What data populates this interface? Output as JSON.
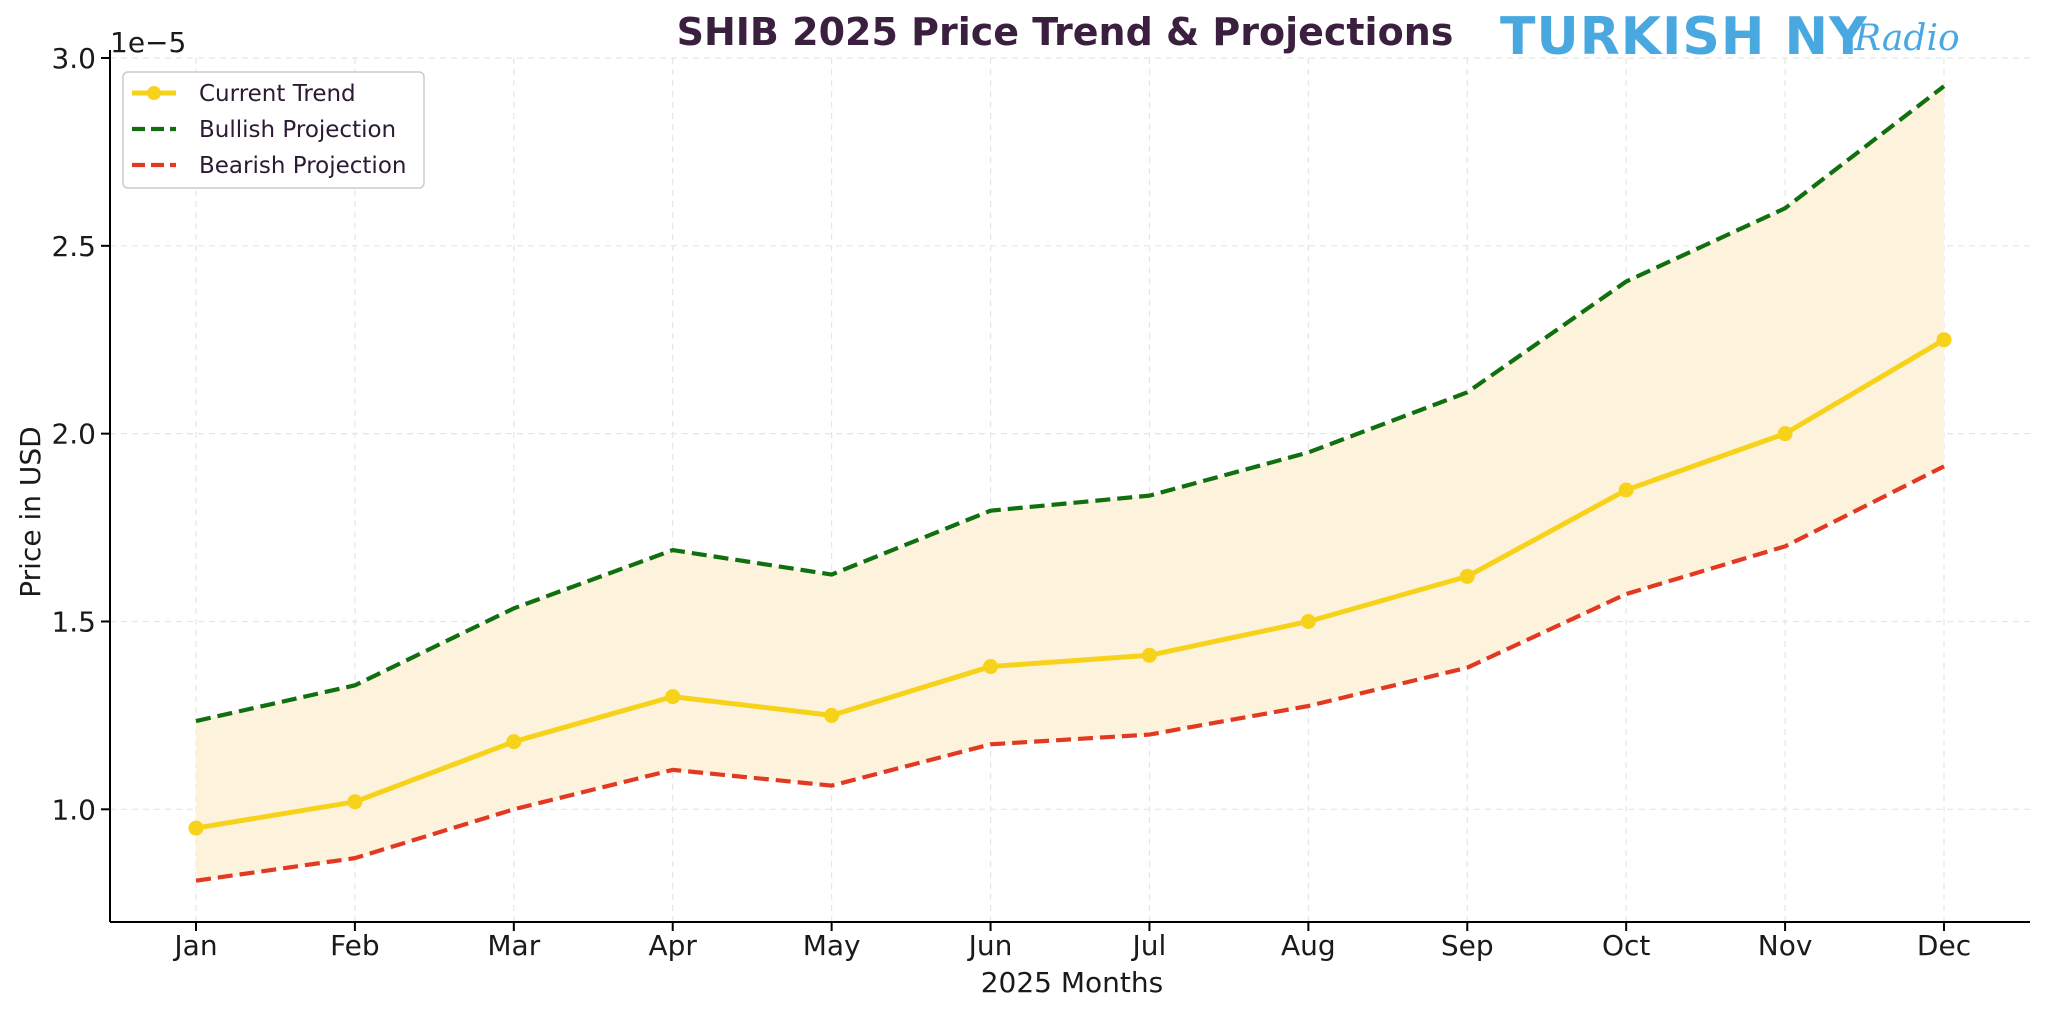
{
  "chart_data": {
    "type": "line",
    "title": "SHIB 2025 Price Trend & Projections",
    "xlabel": "2025 Months",
    "ylabel": "Price in USD",
    "y_offset_label": "1e−5",
    "categories": [
      "Jan",
      "Feb",
      "Mar",
      "Apr",
      "May",
      "Jun",
      "Jul",
      "Aug",
      "Sep",
      "Oct",
      "Nov",
      "Dec"
    ],
    "ylim": [
      0.7,
      3.0
    ],
    "yticks": [
      1.0,
      1.5,
      2.0,
      2.5,
      3.0
    ],
    "ytick_labels": [
      "1.0",
      "1.5",
      "2.0",
      "2.5",
      "3.0"
    ],
    "grid": true,
    "legend_position": "top-left",
    "series": [
      {
        "name": "Current Trend",
        "style": "solid-markers",
        "color": "#f7d21a",
        "values": [
          0.95,
          1.02,
          1.18,
          1.3,
          1.25,
          1.38,
          1.41,
          1.5,
          1.62,
          1.85,
          2.0,
          2.25
        ]
      },
      {
        "name": "Bullish Projection",
        "style": "dashed",
        "color": "#107010",
        "values": [
          1.235,
          1.33,
          1.535,
          1.69,
          1.625,
          1.795,
          1.835,
          1.95,
          2.11,
          2.405,
          2.6,
          2.925
        ]
      },
      {
        "name": "Bearish Projection",
        "style": "dashed",
        "color": "#e23a22",
        "values": [
          0.81,
          0.87,
          1.0,
          1.105,
          1.063,
          1.173,
          1.199,
          1.275,
          1.377,
          1.573,
          1.7,
          1.913
        ]
      }
    ],
    "band": {
      "between": [
        "Bearish Projection",
        "Bullish Projection"
      ],
      "color": "#fdf3dc"
    }
  },
  "watermark": {
    "brand": "TURKISH NY",
    "script": "Radio",
    "color": "#4aa8e0"
  }
}
